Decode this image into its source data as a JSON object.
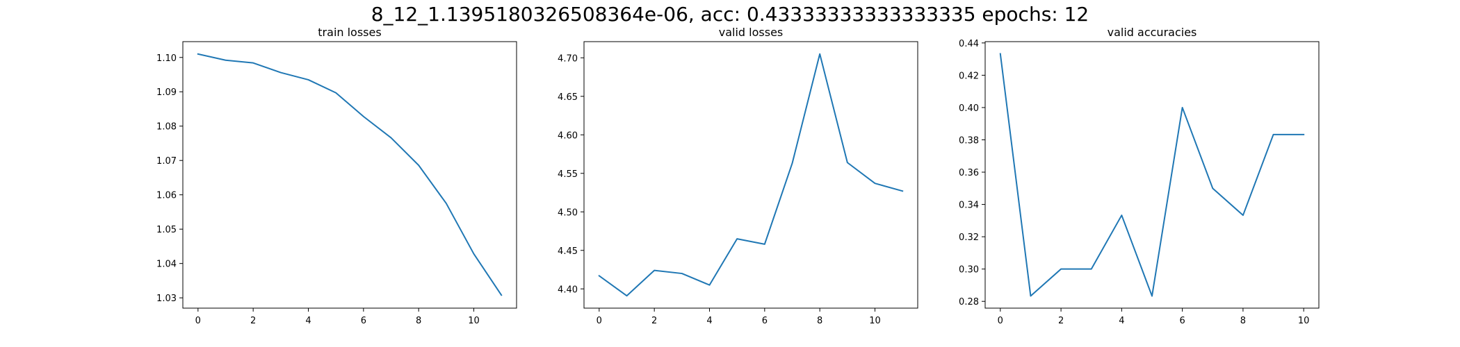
{
  "suptitle": "8_12_1.1395180326508364e-06, acc: 0.43333333333333335 epochs: 12",
  "chart_data": [
    {
      "type": "line",
      "title": "train losses",
      "xlabel": "",
      "ylabel": "",
      "x": [
        0,
        1,
        2,
        3,
        4,
        5,
        6,
        7,
        8,
        9,
        10,
        11
      ],
      "series": [
        {
          "values": [
            1.101,
            1.0992,
            1.0984,
            1.0956,
            1.0935,
            1.0897,
            1.0828,
            1.0766,
            1.0686,
            1.0575,
            1.0428,
            1.0308
          ],
          "color": "#1f77b4"
        }
      ],
      "xlim": [
        -0.55,
        11.55
      ],
      "ylim": [
        1.027,
        1.1046
      ],
      "xticks": [
        0,
        2,
        4,
        6,
        8,
        10
      ],
      "yticks": [
        1.03,
        1.04,
        1.05,
        1.06,
        1.07,
        1.08,
        1.09,
        1.1
      ],
      "ytick_decimals": 2,
      "grid": false
    },
    {
      "type": "line",
      "title": "valid losses",
      "xlabel": "",
      "ylabel": "",
      "x": [
        0,
        1,
        2,
        3,
        4,
        5,
        6,
        7,
        8,
        9,
        10,
        11
      ],
      "series": [
        {
          "values": [
            4.417,
            4.391,
            4.424,
            4.42,
            4.405,
            4.465,
            4.458,
            4.563,
            4.705,
            4.564,
            4.537,
            4.527
          ],
          "color": "#1f77b4"
        }
      ],
      "xlim": [
        -0.55,
        11.55
      ],
      "ylim": [
        4.375,
        4.721
      ],
      "xticks": [
        0,
        2,
        4,
        6,
        8,
        10
      ],
      "yticks": [
        4.4,
        4.45,
        4.5,
        4.55,
        4.6,
        4.65,
        4.7
      ],
      "ytick_decimals": 2,
      "grid": false
    },
    {
      "type": "line",
      "title": "valid accuracies",
      "xlabel": "",
      "ylabel": "",
      "x": [
        0,
        1,
        2,
        3,
        4,
        5,
        6,
        7,
        8,
        9,
        10
      ],
      "series": [
        {
          "values": [
            0.4333,
            0.2833,
            0.3,
            0.3,
            0.3333,
            0.2833,
            0.4,
            0.35,
            0.3333,
            0.3833,
            0.3833
          ],
          "color": "#1f77b4"
        }
      ],
      "xlim": [
        -0.5,
        10.5
      ],
      "ylim": [
        0.2758,
        0.4408
      ],
      "xticks": [
        0,
        2,
        4,
        6,
        8,
        10
      ],
      "yticks": [
        0.28,
        0.3,
        0.32,
        0.34,
        0.36,
        0.38,
        0.4,
        0.42,
        0.44
      ],
      "ytick_decimals": 2,
      "grid": false
    }
  ]
}
